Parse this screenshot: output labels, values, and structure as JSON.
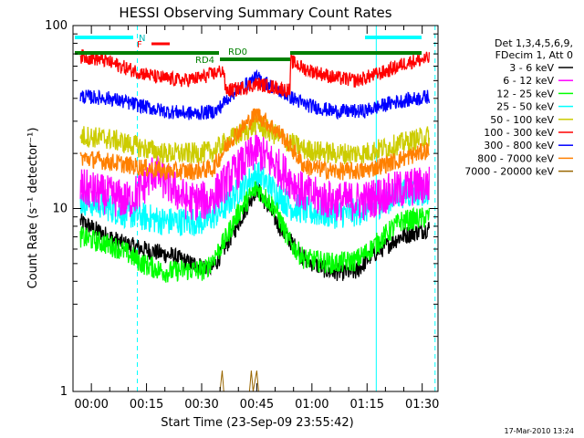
{
  "chart_data": {
    "type": "line",
    "title": "HESSI Observing Summary Count Rates",
    "xlabel": "Start Time (23-Sep-09 23:55:42)",
    "ylabel": "Count Rate (s⁻¹ detector⁻¹)",
    "yscale": "log",
    "ylim": [
      1,
      100
    ],
    "xlim_minutes_after_start": [
      -5,
      94.3
    ],
    "x_tick_labels": [
      "00:00",
      "00:15",
      "00:30",
      "00:45",
      "01:00",
      "01:15",
      "01:30"
    ],
    "y_tick_labels": [
      "1",
      "10",
      "100"
    ],
    "legend_header": [
      "Det 1,3,4,5,6,9,",
      "FDecim 1, Att 0"
    ],
    "legend_position": "right",
    "series": [
      {
        "name": "3 - 6 keV",
        "color": "#000000",
        "points": [
          [
            -3,
            8.5
          ],
          [
            2,
            7.5
          ],
          [
            8,
            6.5
          ],
          [
            14,
            6
          ],
          [
            22,
            5.5
          ],
          [
            27,
            5
          ],
          [
            33,
            4.7
          ],
          [
            38,
            7
          ],
          [
            45,
            13
          ],
          [
            52,
            7.5
          ],
          [
            58,
            5.3
          ],
          [
            65,
            4.5
          ],
          [
            72,
            4.5
          ],
          [
            76,
            5.5
          ],
          [
            84,
            7
          ],
          [
            92,
            7.8
          ]
        ]
      },
      {
        "name": "6 - 12 keV",
        "color": "#ff00ff",
        "points": [
          [
            -3,
            13
          ],
          [
            3,
            12
          ],
          [
            10,
            11
          ],
          [
            14,
            13
          ],
          [
            17,
            16
          ],
          [
            22,
            13
          ],
          [
            26,
            11
          ],
          [
            32,
            11
          ],
          [
            38,
            15
          ],
          [
            45,
            21
          ],
          [
            52,
            16
          ],
          [
            58,
            12
          ],
          [
            66,
            11
          ],
          [
            74,
            11
          ],
          [
            80,
            12
          ],
          [
            86,
            13
          ],
          [
            92,
            13.5
          ]
        ]
      },
      {
        "name": "12 - 25 keV",
        "color": "#00ff00",
        "points": [
          [
            -3,
            7
          ],
          [
            3,
            6.5
          ],
          [
            8,
            6
          ],
          [
            14,
            5
          ],
          [
            20,
            4.5
          ],
          [
            26,
            4.6
          ],
          [
            31,
            4.6
          ],
          [
            36,
            6.5
          ],
          [
            40,
            9.5
          ],
          [
            45,
            13
          ],
          [
            50,
            10
          ],
          [
            54,
            6.5
          ],
          [
            58,
            5.3
          ],
          [
            66,
            5
          ],
          [
            72,
            5.2
          ],
          [
            76,
            6
          ],
          [
            84,
            8.5
          ],
          [
            92,
            9
          ]
        ]
      },
      {
        "name": "25 - 50 keV",
        "color": "#00ffff",
        "points": [
          [
            -3,
            11
          ],
          [
            3,
            10.5
          ],
          [
            8,
            9.5
          ],
          [
            14,
            9
          ],
          [
            20,
            8.5
          ],
          [
            26,
            8.5
          ],
          [
            31,
            8.5
          ],
          [
            36,
            10
          ],
          [
            40,
            12.5
          ],
          [
            45,
            15.5
          ],
          [
            50,
            12.5
          ],
          [
            54,
            10.3
          ],
          [
            60,
            9.5
          ],
          [
            66,
            9.3
          ],
          [
            72,
            9.5
          ],
          [
            78,
            10.5
          ],
          [
            84,
            12
          ],
          [
            92,
            12.5
          ]
        ]
      },
      {
        "name": "50 - 100 keV",
        "color": "#cccc00",
        "points": [
          [
            -3,
            25
          ],
          [
            5,
            24
          ],
          [
            12,
            22
          ],
          [
            20,
            20
          ],
          [
            28,
            20
          ],
          [
            33,
            20.5
          ],
          [
            38,
            24
          ],
          [
            45,
            29
          ],
          [
            52,
            24
          ],
          [
            58,
            21
          ],
          [
            66,
            20
          ],
          [
            74,
            20
          ],
          [
            82,
            22
          ],
          [
            92,
            25
          ]
        ]
      },
      {
        "name": "100 - 300 keV",
        "color": "#ff0000",
        "points": [
          [
            -3,
            68
          ],
          [
            3,
            65
          ],
          [
            10,
            58
          ],
          [
            18,
            52
          ],
          [
            25,
            50
          ],
          [
            30,
            52
          ],
          [
            36,
            57
          ],
          [
            36.5,
            44
          ],
          [
            40,
            45
          ],
          [
            45,
            48
          ],
          [
            50,
            46
          ],
          [
            54,
            44
          ],
          [
            54.3,
            64
          ],
          [
            58,
            58
          ],
          [
            66,
            52
          ],
          [
            72,
            50
          ],
          [
            80,
            56
          ],
          [
            86,
            63
          ],
          [
            92,
            66
          ]
        ]
      },
      {
        "name": "300 - 800 keV",
        "color": "#0000ff",
        "points": [
          [
            -3,
            41
          ],
          [
            5,
            40
          ],
          [
            12,
            37
          ],
          [
            20,
            34
          ],
          [
            28,
            33
          ],
          [
            34,
            34
          ],
          [
            38,
            42
          ],
          [
            45,
            52
          ],
          [
            52,
            43
          ],
          [
            58,
            37
          ],
          [
            66,
            34
          ],
          [
            74,
            34
          ],
          [
            82,
            38
          ],
          [
            92,
            41
          ]
        ]
      },
      {
        "name": "800 - 7000 keV",
        "color": "#ff8000",
        "points": [
          [
            -3,
            19
          ],
          [
            5,
            18
          ],
          [
            12,
            17
          ],
          [
            20,
            16
          ],
          [
            28,
            16
          ],
          [
            33,
            16.5
          ],
          [
            38,
            24
          ],
          [
            45,
            33
          ],
          [
            52,
            25
          ],
          [
            58,
            17
          ],
          [
            66,
            16
          ],
          [
            74,
            16
          ],
          [
            82,
            18
          ],
          [
            92,
            21
          ]
        ]
      },
      {
        "name": "7000 - 20000 keV",
        "color": "#996600",
        "points": [
          [
            -3,
            1
          ],
          [
            35,
            1
          ],
          [
            35.6,
            1.3
          ],
          [
            36,
            1
          ],
          [
            43,
            1
          ],
          [
            43.5,
            1.3
          ],
          [
            44,
            1
          ],
          [
            45,
            1.3
          ],
          [
            45.5,
            1
          ],
          [
            92,
            1
          ]
        ]
      }
    ],
    "annotations": {
      "n_label": "N",
      "f_label": "F",
      "flag_labels": [
        "RD4",
        "RD0"
      ],
      "timestamp": "17-Mar-2010 13:24"
    },
    "vertical_markers": {
      "solid_minutes": [
        -5,
        77.5
      ],
      "dashed_minutes": [
        12.5,
        93.5
      ]
    }
  }
}
